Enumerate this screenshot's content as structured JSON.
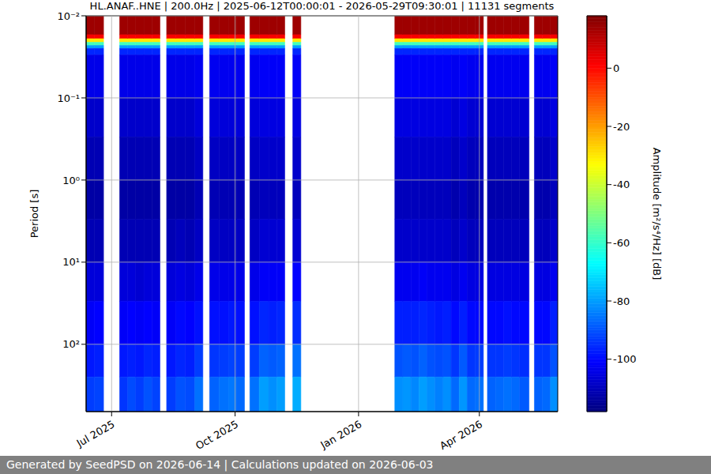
{
  "chart_data": {
    "type": "heatmap",
    "title": "HL.ANAF..HNE | 200.0Hz | 2025-06-12T00:00:01 - 2026-05-29T09:30:01 | 11131 segments",
    "y_label": "Period [s]",
    "log": "y",
    "grid": true,
    "xlim": [
      "2025-06-12T00:00:01",
      "2026-05-29T09:30:01"
    ],
    "xticks": [
      {
        "value": "2025-07-01",
        "label": "Jul 2025"
      },
      {
        "value": "2025-10-01",
        "label": "Oct 2025"
      },
      {
        "value": "2026-01-01",
        "label": "Jan 2026"
      },
      {
        "value": "2026-04-01",
        "label": "Apr 2026"
      }
    ],
    "ylim": [
      0.01,
      660
    ],
    "yticks": [
      {
        "value": 0.01,
        "label": "10⁻²"
      },
      {
        "value": 0.1,
        "label": "10⁻¹"
      },
      {
        "value": 1,
        "label": "10⁰"
      },
      {
        "value": 10,
        "label": "10¹"
      },
      {
        "value": 100,
        "label": "10²"
      }
    ],
    "period_edges": [
      0.01,
      0.017,
      0.019,
      0.021,
      0.023,
      0.025,
      0.03,
      0.1,
      0.3,
      1,
      3,
      10,
      30,
      100,
      250,
      660
    ],
    "x": [
      "2025-06-12",
      "2025-06-18",
      "2025-06-25",
      "2025-07-07",
      "2025-07-13",
      "2025-07-19",
      "2025-07-25",
      "2025-07-31",
      "2025-08-06",
      "2025-08-11",
      "2025-08-18",
      "2025-08-25",
      "2025-09-01",
      "2025-09-07",
      "2025-09-12",
      "2025-09-19",
      "2025-09-26",
      "2025-10-02",
      "2025-10-08",
      "2025-10-12",
      "2025-10-19",
      "2025-10-26",
      "2025-11-01",
      "2025-11-07",
      "2025-11-13",
      "2025-11-19",
      "2026-01-28",
      "2026-02-03",
      "2026-02-09",
      "2026-02-15",
      "2026-02-21",
      "2026-02-27",
      "2026-03-05",
      "2026-03-11",
      "2026-03-17",
      "2026-03-23",
      "2026-03-29",
      "2026-04-04",
      "2026-04-07",
      "2026-04-13",
      "2026-04-19",
      "2026-04-25",
      "2026-05-01",
      "2026-05-08",
      "2026-05-12",
      "2026-05-18",
      "2026-05-24"
    ],
    "z": [
      [
        14,
        2,
        -30,
        -58,
        -80,
        -96,
        -104,
        -108,
        -111,
        -113,
        -111,
        -106,
        -102,
        -98,
        -93
      ],
      [
        14,
        2,
        -30,
        -58,
        -80,
        -96,
        -104,
        -108,
        -111,
        -113,
        -111,
        -106,
        -101,
        -97,
        -92
      ],
      null,
      [
        14,
        2,
        -30,
        -58,
        -80,
        -96,
        -104,
        -108,
        -111,
        -113,
        -111,
        -106,
        -102,
        -98,
        -94
      ],
      [
        14,
        2,
        -30,
        -58,
        -80,
        -96,
        -104,
        -108,
        -111,
        -113,
        -111,
        -106,
        -101,
        -97,
        -91
      ],
      [
        14,
        2,
        -30,
        -58,
        -80,
        -96,
        -104,
        -108,
        -111,
        -113,
        -111,
        -107,
        -102,
        -98,
        -93
      ],
      [
        14,
        2,
        -30,
        -58,
        -80,
        -96,
        -104,
        -108,
        -111,
        -113,
        -111,
        -106,
        -101,
        -96,
        -90
      ],
      [
        14,
        2,
        -30,
        -58,
        -80,
        -96,
        -104,
        -108,
        -111,
        -113,
        -111,
        -106,
        -102,
        -97,
        -92
      ],
      null,
      [
        14,
        2,
        -30,
        -58,
        -80,
        -96,
        -104,
        -108,
        -111,
        -113,
        -111,
        -106,
        -102,
        -98,
        -93
      ],
      [
        14,
        2,
        -30,
        -58,
        -80,
        -96,
        -104,
        -108,
        -111,
        -113,
        -110,
        -105,
        -100,
        -96,
        -90
      ],
      [
        14,
        2,
        -30,
        -58,
        -80,
        -96,
        -104,
        -108,
        -111,
        -113,
        -111,
        -106,
        -101,
        -97,
        -91
      ],
      [
        14,
        2,
        -30,
        -58,
        -80,
        -96,
        -103,
        -106,
        -109,
        -111,
        -109,
        -104,
        -99,
        -93,
        -86
      ],
      null,
      [
        14,
        2,
        -30,
        -58,
        -80,
        -96,
        -103,
        -106,
        -109,
        -111,
        -109,
        -104,
        -99,
        -94,
        -88
      ],
      [
        14,
        2,
        -30,
        -58,
        -80,
        -96,
        -103,
        -106,
        -109,
        -111,
        -109,
        -104,
        -99,
        -93,
        -86
      ],
      [
        14,
        2,
        -30,
        -58,
        -80,
        -96,
        -103,
        -106,
        -109,
        -111,
        -109,
        -104,
        -98,
        -92,
        -85
      ],
      [
        14,
        2,
        -30,
        -58,
        -80,
        -96,
        -103,
        -106,
        -109,
        -111,
        -109,
        -104,
        -99,
        -93,
        -87
      ],
      null,
      [
        14,
        2,
        -30,
        -58,
        -80,
        -96,
        -103,
        -106,
        -109,
        -111,
        -109,
        -104,
        -99,
        -93,
        -86
      ],
      [
        14,
        2,
        -30,
        -58,
        -80,
        -96,
        -102,
        -105,
        -108,
        -110,
        -107,
        -102,
        -96,
        -88,
        -80
      ],
      [
        14,
        2,
        -30,
        -58,
        -80,
        -96,
        -102,
        -105,
        -108,
        -110,
        -107,
        -102,
        -97,
        -89,
        -82
      ],
      [
        14,
        2,
        -30,
        -58,
        -80,
        -96,
        -102,
        -105,
        -108,
        -110,
        -107,
        -102,
        -96,
        -88,
        -80
      ],
      null,
      [
        14,
        2,
        -30,
        -58,
        -80,
        -96,
        -102,
        -105,
        -108,
        -110,
        -107,
        -101,
        -95,
        -86,
        -78
      ],
      null,
      [
        14,
        2,
        -30,
        -58,
        -80,
        -96,
        -102,
        -105,
        -108,
        -110,
        -108,
        -103,
        -97,
        -90,
        -82
      ],
      [
        14,
        2,
        -30,
        -58,
        -80,
        -96,
        -102,
        -105,
        -108,
        -110,
        -108,
        -103,
        -97,
        -89,
        -81
      ],
      [
        14,
        2,
        -30,
        -58,
        -80,
        -96,
        -102,
        -105,
        -108,
        -110,
        -108,
        -103,
        -97,
        -90,
        -83
      ],
      [
        14,
        2,
        -30,
        -58,
        -80,
        -96,
        -102,
        -105,
        -108,
        -110,
        -108,
        -102,
        -96,
        -88,
        -80
      ],
      [
        14,
        2,
        -30,
        -58,
        -80,
        -96,
        -102,
        -105,
        -108,
        -110,
        -108,
        -103,
        -97,
        -90,
        -82
      ],
      [
        14,
        2,
        -30,
        -58,
        -80,
        -96,
        -102,
        -105,
        -108,
        -110,
        -108,
        -103,
        -98,
        -91,
        -84
      ],
      [
        14,
        2,
        -30,
        -58,
        -80,
        -96,
        -102,
        -105,
        -108,
        -110,
        -108,
        -103,
        -97,
        -90,
        -82
      ],
      [
        14,
        2,
        -30,
        -58,
        -80,
        -96,
        -103,
        -107,
        -110,
        -112,
        -110,
        -105,
        -100,
        -94,
        -87
      ],
      [
        14,
        2,
        -30,
        -58,
        -80,
        -96,
        -102,
        -105,
        -108,
        -110,
        -108,
        -103,
        -97,
        -89,
        -81
      ],
      [
        14,
        2,
        -30,
        -58,
        -80,
        -96,
        -103,
        -107,
        -110,
        -112,
        -110,
        -105,
        -100,
        -94,
        -87
      ],
      [
        14,
        2,
        -30,
        -58,
        -80,
        -96,
        -103,
        -107,
        -110,
        -112,
        -110,
        -105,
        -100,
        -93,
        -86
      ],
      null,
      [
        14,
        2,
        -30,
        -58,
        -80,
        -96,
        -103,
        -107,
        -110,
        -112,
        -110,
        -105,
        -100,
        -94,
        -88
      ],
      [
        14,
        2,
        -30,
        -58,
        -80,
        -96,
        -103,
        -107,
        -110,
        -112,
        -110,
        -105,
        -100,
        -94,
        -87
      ],
      [
        14,
        2,
        -30,
        -58,
        -80,
        -96,
        -103,
        -107,
        -110,
        -112,
        -110,
        -105,
        -99,
        -93,
        -86
      ],
      [
        14,
        2,
        -30,
        -58,
        -80,
        -96,
        -103,
        -107,
        -110,
        -112,
        -110,
        -105,
        -100,
        -94,
        -87
      ],
      [
        14,
        2,
        -30,
        -58,
        -80,
        -96,
        -103,
        -107,
        -110,
        -112,
        -110,
        -105,
        -100,
        -95,
        -89
      ],
      null,
      [
        14,
        2,
        -30,
        -58,
        -80,
        -96,
        -103,
        -107,
        -110,
        -112,
        -110,
        -105,
        -100,
        -94,
        -88
      ],
      [
        14,
        2,
        -30,
        -58,
        -80,
        -96,
        -103,
        -107,
        -110,
        -112,
        -110,
        -105,
        -100,
        -94,
        -87
      ],
      [
        14,
        2,
        -30,
        -58,
        -80,
        -96,
        -102,
        -105,
        -108,
        -110,
        -108,
        -103,
        -97,
        -90,
        -82
      ]
    ],
    "colorbar": {
      "label": "Amplitude [m²/s⁴/Hz] [dB]",
      "range": [
        -118,
        18
      ],
      "ticks": [
        -100,
        -80,
        -60,
        -40,
        -20,
        0
      ]
    },
    "footer": "Generated by SeedPSD on 2026-06-14 | Calculations updated on 2026-06-03"
  }
}
